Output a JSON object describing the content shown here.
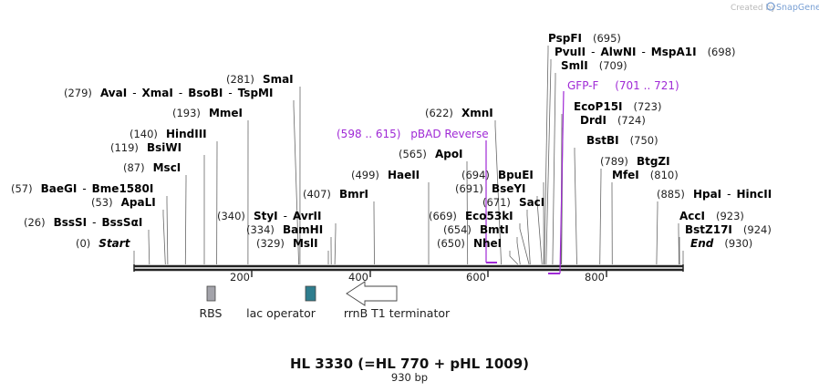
{
  "credit": {
    "prefix": "Created by",
    "brand": "SnapGene"
  },
  "title": "HL 3330 (=HL 770 + pHL 1009)",
  "subtitle": "930 bp",
  "sequence": {
    "length": 930
  },
  "axis_ticks": [
    "200",
    "400",
    "600",
    "800"
  ],
  "features": [
    {
      "label": "RBS",
      "color": "#a3a3aa",
      "shape": "box"
    },
    {
      "label": "lac operator",
      "color": "#2e7d8e",
      "shape": "box"
    },
    {
      "label": "rrnB T1 terminator",
      "color": "#ffffff",
      "shape": "arrow-left"
    }
  ],
  "enzyme_rows": [
    {
      "pos": "(695)",
      "parts": [
        "PspFI"
      ]
    },
    {
      "pos": "(698)",
      "parts": [
        "PvuII",
        "AlwNI",
        "MspA1I"
      ]
    },
    {
      "pos": "(709)",
      "parts": [
        "SmlI"
      ]
    },
    {
      "pos": "(281)",
      "parts": [
        "SmaI"
      ]
    },
    {
      "pos": "(279)",
      "parts": [
        "AvaI",
        "XmaI",
        "BsoBI",
        "TspMI"
      ]
    },
    {
      "pos": "(723)",
      "parts": [
        "EcoP15I"
      ]
    },
    {
      "pos": "(193)",
      "parts": [
        "MmeI"
      ]
    },
    {
      "pos": "(622)",
      "parts": [
        "XmnI"
      ]
    },
    {
      "pos": "(724)",
      "parts": [
        "DrdI"
      ]
    },
    {
      "pos": "(140)",
      "parts": [
        "HindIII"
      ]
    },
    {
      "pos": "(750)",
      "parts": [
        "BstBI"
      ]
    },
    {
      "pos": "(119)",
      "parts": [
        "BsiWI"
      ]
    },
    {
      "pos": "(565)",
      "parts": [
        "ApoI"
      ]
    },
    {
      "pos": "(87)",
      "parts": [
        "MscI"
      ]
    },
    {
      "pos": "(789)",
      "parts": [
        "BtgZI"
      ]
    },
    {
      "pos": "(499)",
      "parts": [
        "HaeII"
      ]
    },
    {
      "pos": "(694)",
      "parts": [
        "BpuEI"
      ]
    },
    {
      "pos": "(810)",
      "parts": [
        "MfeI"
      ]
    },
    {
      "pos": "(57)",
      "parts": [
        "BaeGI",
        "Bme1580I"
      ]
    },
    {
      "pos": "(691)",
      "parts": [
        "BseYI"
      ]
    },
    {
      "pos": "(407)",
      "parts": [
        "BmrI"
      ]
    },
    {
      "pos": "(885)",
      "parts": [
        "HpaI",
        "HincII"
      ]
    },
    {
      "pos": "(53)",
      "parts": [
        "ApaLI"
      ]
    },
    {
      "pos": "(671)",
      "parts": [
        "SacI"
      ]
    },
    {
      "pos": "(340)",
      "parts": [
        "StyI",
        "AvrII"
      ]
    },
    {
      "pos": "(669)",
      "parts": [
        "Eco53kI"
      ]
    },
    {
      "pos": "(923)",
      "parts": [
        "AccI"
      ]
    },
    {
      "pos": "(26)",
      "parts": [
        "BssSI",
        "BssSαI"
      ]
    },
    {
      "pos": "(334)",
      "parts": [
        "BamHI"
      ]
    },
    {
      "pos": "(654)",
      "parts": [
        "BmtI"
      ]
    },
    {
      "pos": "(924)",
      "parts": [
        "BstZ17I"
      ]
    },
    {
      "pos": "(0)",
      "parts": [
        "Start"
      ],
      "italic": true
    },
    {
      "pos": "(329)",
      "parts": [
        "MslI"
      ]
    },
    {
      "pos": "(650)",
      "parts": [
        "NheI"
      ]
    },
    {
      "pos": "(930)",
      "parts": [
        "End"
      ],
      "italic": true
    }
  ],
  "primers": [
    {
      "name": "pBAD Reverse",
      "range": "(598 .. 615)"
    },
    {
      "name": "GFP-F",
      "range": "(701 .. 721)"
    }
  ],
  "colors": {
    "primer": "#a02ad6",
    "backbone": "#222222"
  }
}
